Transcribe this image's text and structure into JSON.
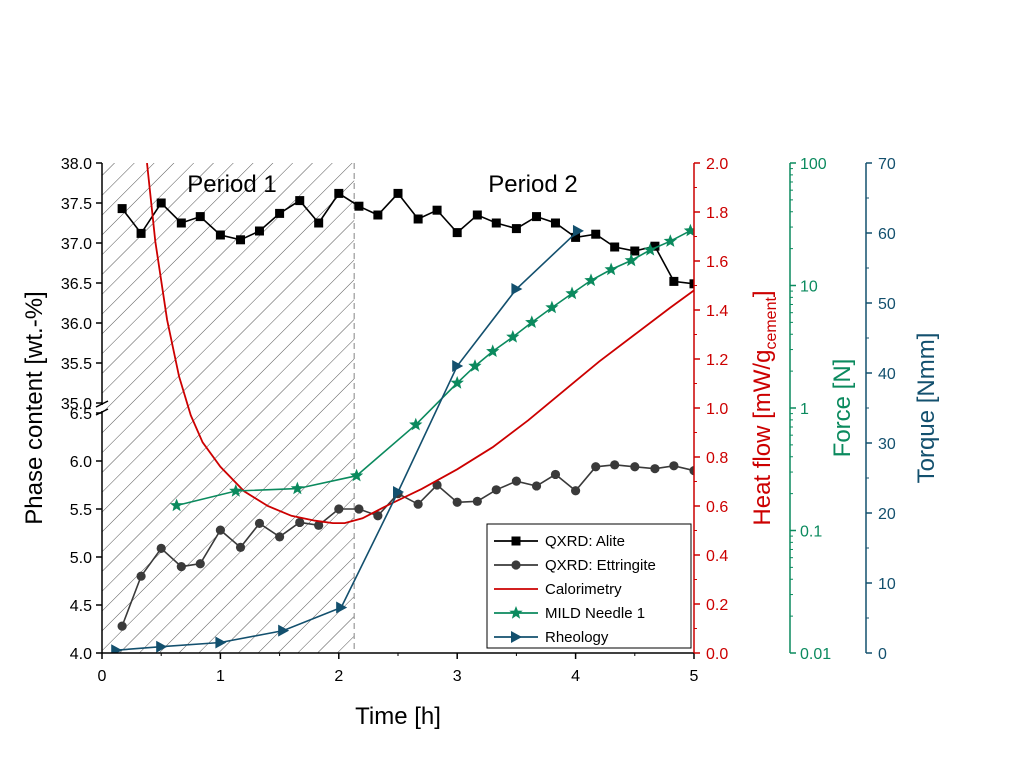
{
  "chart_data": {
    "type": "line",
    "periods": [
      "Period 1",
      "Period 2"
    ],
    "period_boundary_h": 2.13,
    "x_axis": {
      "label": "Time [h]",
      "range": [
        0,
        5
      ],
      "ticks": [
        "0",
        "1",
        "2",
        "3",
        "4",
        "5"
      ]
    },
    "y_left_upper": {
      "range": [
        35.0,
        38.0
      ],
      "ticks": [
        "35.0",
        "35.5",
        "36.0",
        "36.5",
        "37.0",
        "37.5",
        "38.0"
      ]
    },
    "y_left_lower": {
      "range": [
        4.0,
        6.5
      ],
      "ticks": [
        "4.0",
        "4.5",
        "5.0",
        "5.5",
        "6.0",
        "6.5"
      ]
    },
    "y_left_label": "Phase content [wt.-%]",
    "y_heat": {
      "label_main": "Heat flow [mW/g",
      "label_sub": "cement",
      "label_end": "]",
      "color": "#cc0000",
      "range": [
        0,
        2.0
      ],
      "ticks": [
        "0.0",
        "0.2",
        "0.4",
        "0.6",
        "0.8",
        "1.0",
        "1.2",
        "1.4",
        "1.6",
        "1.8",
        "2.0"
      ]
    },
    "y_force": {
      "label": "Force [N]",
      "color": "#0b8a5e",
      "scale": "log",
      "range": [
        0.01,
        100
      ],
      "ticks": [
        "0.01",
        "0.1",
        "1",
        "10",
        "100"
      ]
    },
    "y_torque": {
      "label": "Torque [Nmm]",
      "color": "#13506e",
      "range": [
        0,
        70
      ],
      "ticks": [
        "0",
        "10",
        "20",
        "30",
        "40",
        "50",
        "60",
        "70"
      ]
    },
    "legend": [
      "QXRD: Alite",
      "QXRD: Ettringite",
      "Calorimetry",
      "MILD Needle 1",
      "Rheology"
    ],
    "series": [
      {
        "name": "QXRD: Alite",
        "axis": "left",
        "color": "#000000",
        "marker": "square",
        "x": [
          0.17,
          0.33,
          0.5,
          0.67,
          0.83,
          1.0,
          1.17,
          1.33,
          1.5,
          1.67,
          1.83,
          2.0,
          2.17,
          2.33,
          2.5,
          2.67,
          2.83,
          3.0,
          3.17,
          3.33,
          3.5,
          3.67,
          3.83,
          4.0,
          4.17,
          4.33,
          4.5,
          4.67,
          4.83,
          5.0
        ],
        "y": [
          37.43,
          37.12,
          37.5,
          37.25,
          37.33,
          37.1,
          37.04,
          37.15,
          37.37,
          37.53,
          37.25,
          37.62,
          37.46,
          37.35,
          37.62,
          37.3,
          37.41,
          37.13,
          37.35,
          37.25,
          37.18,
          37.33,
          37.25,
          37.07,
          37.11,
          36.95,
          36.9,
          36.96,
          36.52,
          36.49
        ]
      },
      {
        "name": "QXRD: Ettringite",
        "axis": "left",
        "color": "#3a3a3a",
        "marker": "circle",
        "x": [
          0.17,
          0.33,
          0.5,
          0.67,
          0.83,
          1.0,
          1.17,
          1.33,
          1.5,
          1.67,
          1.83,
          2.0,
          2.17,
          2.33,
          2.5,
          2.67,
          2.83,
          3.0,
          3.17,
          3.33,
          3.5,
          3.67,
          3.83,
          4.0,
          4.17,
          4.33,
          4.5,
          4.67,
          4.83,
          5.0
        ],
        "y": [
          4.28,
          4.8,
          5.09,
          4.9,
          4.93,
          5.28,
          5.1,
          5.35,
          5.21,
          5.36,
          5.33,
          5.5,
          5.5,
          5.43,
          5.66,
          5.55,
          5.75,
          5.57,
          5.58,
          5.7,
          5.79,
          5.74,
          5.86,
          5.69,
          5.94,
          5.96,
          5.94,
          5.92,
          5.95,
          5.9
        ]
      },
      {
        "name": "Calorimetry",
        "axis": "heat",
        "color": "#cc0000",
        "marker": "none",
        "x": [
          0.38,
          0.45,
          0.55,
          0.65,
          0.75,
          0.85,
          1.0,
          1.2,
          1.4,
          1.6,
          1.8,
          1.95,
          2.05,
          2.2,
          2.4,
          2.7,
          3.0,
          3.3,
          3.6,
          3.9,
          4.2,
          4.5,
          4.8,
          5.0
        ],
        "y": [
          2.0,
          1.68,
          1.36,
          1.13,
          0.97,
          0.86,
          0.76,
          0.66,
          0.6,
          0.56,
          0.54,
          0.53,
          0.53,
          0.55,
          0.6,
          0.67,
          0.75,
          0.84,
          0.95,
          1.07,
          1.19,
          1.3,
          1.41,
          1.48
        ]
      },
      {
        "name": "MILD Needle 1",
        "axis": "force",
        "color": "#0b8a5e",
        "marker": "star",
        "x": [
          0.63,
          1.13,
          1.65,
          2.15,
          2.65,
          3.0,
          3.15,
          3.3,
          3.47,
          3.63,
          3.8,
          3.97,
          4.13,
          4.3,
          4.47,
          4.63,
          4.8,
          4.97
        ],
        "y": [
          0.16,
          0.21,
          0.22,
          0.28,
          0.73,
          1.6,
          2.2,
          2.9,
          3.8,
          5.0,
          6.6,
          8.6,
          11.0,
          13.5,
          16.0,
          19.5,
          23.0,
          28.0
        ]
      },
      {
        "name": "Rheology",
        "axis": "torque",
        "color": "#13506e",
        "marker": "triangle-right",
        "x": [
          0.12,
          0.5,
          1.0,
          1.53,
          2.02,
          2.5,
          3.0,
          3.5,
          4.02
        ],
        "y": [
          0.4,
          0.9,
          1.5,
          3.2,
          6.5,
          23.0,
          41.0,
          52.0,
          60.3
        ]
      }
    ]
  }
}
